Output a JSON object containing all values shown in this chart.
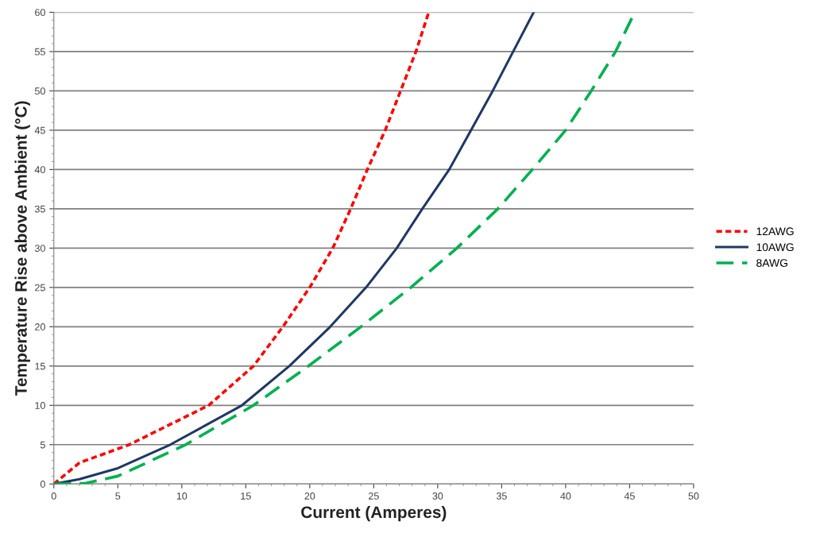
{
  "chart_data": {
    "type": "line",
    "xlabel": "Current (Amperes)",
    "ylabel": "Temperature Rise above Ambient (°C)",
    "xlim": [
      0,
      50
    ],
    "ylim": [
      0,
      60
    ],
    "xticks": [
      0,
      5,
      10,
      15,
      20,
      25,
      30,
      35,
      40,
      45,
      50
    ],
    "yticks": [
      0,
      5,
      10,
      15,
      20,
      25,
      30,
      35,
      40,
      45,
      50,
      55,
      60
    ],
    "grid": "y",
    "legend": "right",
    "marker": "none",
    "series": [
      {
        "name": "12AWG",
        "color": "#ff0000",
        "line_style": "dotted",
        "x": [
          0,
          2,
          5.9,
          8.5,
          12.1,
          15.6,
          17.9,
          20.0,
          21.8,
          23.2,
          24.5,
          25.9,
          27.1,
          28.3,
          29.3
        ],
        "values": [
          0,
          2.7,
          5,
          7.1,
          10,
          15,
          20,
          25,
          30,
          35,
          40,
          45,
          50,
          55,
          60
        ]
      },
      {
        "name": "10AWG",
        "color": "#1f3864",
        "line_style": "solid",
        "x": [
          0,
          2,
          5,
          9.1,
          14.7,
          18.4,
          21.6,
          24.4,
          26.8,
          28.8,
          30.9,
          32.6,
          34.3,
          35.9,
          37.5
        ],
        "values": [
          0,
          0.6,
          2.0,
          5,
          10,
          15,
          20,
          25,
          30,
          35,
          40,
          45,
          50,
          55,
          60
        ]
      },
      {
        "name": "8AWG",
        "color": "#00b050",
        "line_style": "dashed",
        "x": [
          0,
          2.5,
          5,
          10.3,
          15.6,
          19.9,
          24.0,
          27.9,
          31.5,
          34.7,
          37.4,
          40.0,
          42.0,
          43.9,
          45.4
        ],
        "values": [
          0,
          0.1,
          1.0,
          5,
          10,
          15,
          20,
          25,
          30,
          35,
          40,
          45,
          50,
          55,
          60
        ]
      }
    ]
  }
}
